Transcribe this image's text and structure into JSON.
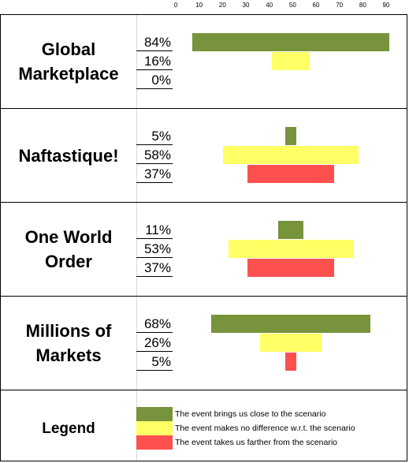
{
  "chart_data": {
    "type": "bar",
    "orientation": "horizontal",
    "layout": "centered-diverging",
    "axis_ticks": [
      "0",
      "10",
      "20",
      "30",
      "40",
      "50",
      "60",
      "70",
      "80",
      "90"
    ],
    "xlim": [
      0,
      90
    ],
    "colors": {
      "close": "#77933c",
      "no_difference": "#ffff66",
      "farther": "#ff5050"
    },
    "scenarios": [
      {
        "name_lines": [
          "Global",
          "Marketplace"
        ],
        "values": [
          84,
          16,
          0
        ],
        "labels": [
          "84%",
          "16%",
          "0%"
        ]
      },
      {
        "name_lines": [
          "Naftastique!"
        ],
        "values": [
          5,
          58,
          37
        ],
        "labels": [
          "5%",
          "58%",
          "37%"
        ]
      },
      {
        "name_lines": [
          "One World",
          "Order"
        ],
        "values": [
          11,
          53,
          37
        ],
        "labels": [
          "11%",
          "53%",
          "37%"
        ]
      },
      {
        "name_lines": [
          "Millions of",
          "Markets"
        ],
        "values": [
          68,
          26,
          5
        ],
        "labels": [
          "68%",
          "26%",
          "5%"
        ]
      }
    ],
    "legend": {
      "title": "Legend",
      "entries": [
        "The event brings us close to the scenario",
        "The event makes no difference w.r.t. the scenario",
        "The event takes us farther from the scenario"
      ]
    }
  }
}
